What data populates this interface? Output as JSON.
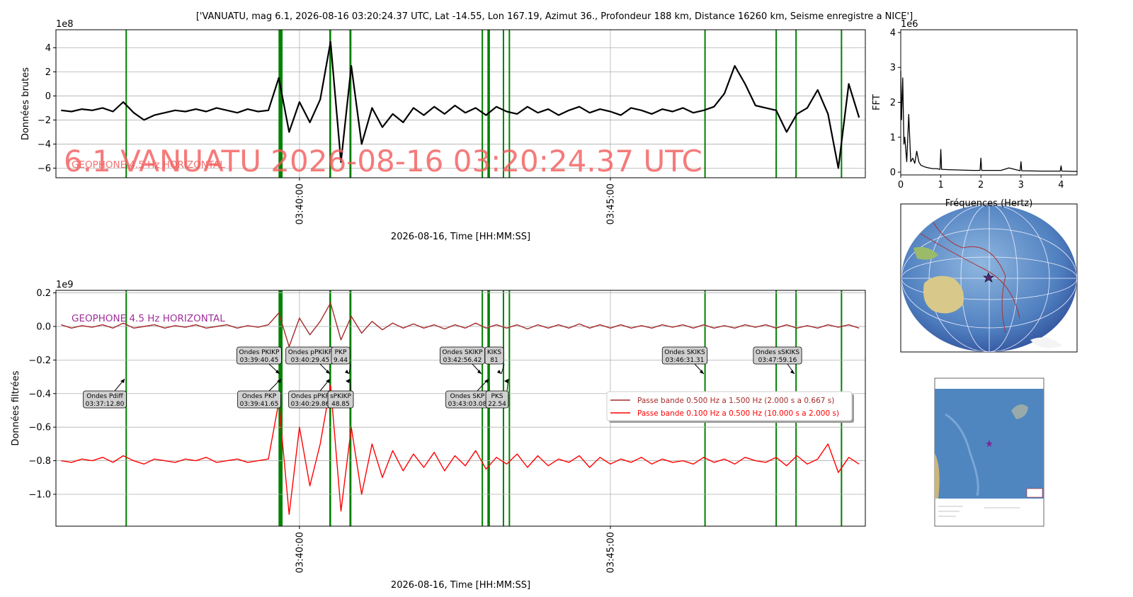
{
  "chart_data": [
    {
      "type": "line",
      "title": "['VANUATU, mag 6.1, 2026-08-16 03:20:24.37 UTC, Lat -14.55, Lon 167.19, Azimut 36., Profondeur 188 km, Distance 16260 km, Seisme enregistre a NICE']",
      "xlabel": "2026-08-16, Time [HH:MM:SS]",
      "ylabel": "Données brutes",
      "y_offset_label": "1e8",
      "watermark": "6.1 VANUATU 2026-08-16 03:20:24.37 UTC",
      "subtitle": "GEOPHONE 4.5 Hz HORIZONTAL",
      "grid": true,
      "xlim": [
        12965,
        13746
      ],
      "ylim": [
        -6.8,
        5.5
      ],
      "xticks": [
        {
          "value": 13200,
          "label": "03:40:00"
        },
        {
          "value": 13500,
          "label": "03:45:00"
        }
      ],
      "yticks": [
        {
          "value": -6,
          "label": "−6"
        },
        {
          "value": -4,
          "label": "−4"
        },
        {
          "value": -2,
          "label": "−2"
        },
        0,
        2,
        4
      ],
      "phase_lines": [
        13032.8,
        13180.45,
        13181.65,
        13183,
        13229.45,
        13229.86,
        13248.85,
        13249.44,
        13376.42,
        13382,
        13383.08,
        13396.81,
        13402.54,
        13591.31,
        13660,
        13679.16,
        13723
      ],
      "phase_color": "#008000",
      "x": [
        12970,
        12980,
        12990,
        13000,
        13010,
        13020,
        13030,
        13040,
        13050,
        13060,
        13070,
        13080,
        13090,
        13100,
        13110,
        13120,
        13130,
        13140,
        13150,
        13160,
        13170,
        13180,
        13190,
        13200,
        13210,
        13220,
        13230,
        13240,
        13250,
        13260,
        13270,
        13280,
        13290,
        13300,
        13310,
        13320,
        13330,
        13340,
        13350,
        13360,
        13370,
        13380,
        13390,
        13400,
        13410,
        13420,
        13430,
        13440,
        13450,
        13460,
        13470,
        13480,
        13490,
        13500,
        13510,
        13520,
        13530,
        13540,
        13550,
        13560,
        13570,
        13580,
        13590,
        13600,
        13610,
        13620,
        13630,
        13640,
        13650,
        13660,
        13670,
        13680,
        13690,
        13700,
        13710,
        13720,
        13730,
        13740
      ],
      "series": [
        {
          "color": "#000000",
          "values": [
            -1.2,
            -1.3,
            -1.1,
            -1.2,
            -1.0,
            -1.3,
            -0.5,
            -1.4,
            -2.0,
            -1.6,
            -1.4,
            -1.2,
            -1.3,
            -1.1,
            -1.3,
            -1.0,
            -1.2,
            -1.4,
            -1.1,
            -1.3,
            -1.2,
            1.5,
            -3.0,
            -0.5,
            -2.2,
            -0.3,
            4.5,
            -5.5,
            2.5,
            -4.0,
            -1.0,
            -2.6,
            -1.5,
            -2.2,
            -1.0,
            -1.6,
            -0.9,
            -1.5,
            -0.8,
            -1.4,
            -1.0,
            -1.6,
            -0.9,
            -1.3,
            -1.5,
            -0.9,
            -1.4,
            -1.1,
            -1.6,
            -1.2,
            -0.9,
            -1.4,
            -1.1,
            -1.3,
            -1.6,
            -1.0,
            -1.2,
            -1.5,
            -1.1,
            -1.3,
            -1.0,
            -1.4,
            -1.2,
            -0.9,
            0.2,
            2.5,
            1.0,
            -0.8,
            -1.0,
            -1.2,
            -3.0,
            -1.5,
            -1.0,
            0.5,
            -1.5,
            -6.0,
            1.0,
            -1.8
          ]
        }
      ]
    },
    {
      "type": "line",
      "xlabel": "2026-08-16, Time [HH:MM:SS]",
      "ylabel": "Données filtrées",
      "y_offset_label": "1e9",
      "subtitle": "GEOPHONE 4.5 Hz HORIZONTAL",
      "grid": true,
      "legend": "center right",
      "xlim": [
        12965,
        13746
      ],
      "ylim": [
        -1.19,
        0.215
      ],
      "xticks": [
        {
          "value": 13200,
          "label": "03:40:00"
        },
        {
          "value": 13500,
          "label": "03:45:00"
        }
      ],
      "yticks": [
        {
          "value": -1.0,
          "label": "−1.0"
        },
        {
          "value": -0.8,
          "label": "−0.8"
        },
        {
          "value": -0.6,
          "label": "−0.6"
        },
        {
          "value": -0.4,
          "label": "−0.4"
        },
        {
          "value": -0.2,
          "label": "−0.2"
        },
        {
          "value": 0,
          "label": "0.0"
        },
        0.2
      ],
      "annotations": [
        [
          "Ondes Pdiff",
          "03:37:12.80"
        ],
        [
          "Ondes PKIKP",
          "03:39:40.45"
        ],
        [
          "Ondes PKP",
          "03:39:41.65"
        ],
        [
          "Ondes pPKIKP",
          "03:40:29.45"
        ],
        [
          "Ondes pPKP",
          "03:40:29.86"
        ],
        [
          "PKP",
          "9.44"
        ],
        [
          "sPKIKP",
          "48.85"
        ],
        [
          "Ondes SKIKP",
          "03:42:56.42"
        ],
        [
          "KIKS",
          "81"
        ],
        [
          "Ondes SKP",
          "03:43:03.08"
        ],
        [
          "PKS",
          "22.54"
        ],
        [
          "Ondes SKIKS",
          "03:46:31.31"
        ],
        [
          "Ondes sSKIKS",
          "03:47:59.16"
        ]
      ],
      "x": [
        12970,
        12980,
        12990,
        13000,
        13010,
        13020,
        13030,
        13040,
        13050,
        13060,
        13070,
        13080,
        13090,
        13100,
        13110,
        13120,
        13130,
        13140,
        13150,
        13160,
        13170,
        13180,
        13190,
        13200,
        13210,
        13220,
        13230,
        13240,
        13250,
        13260,
        13270,
        13280,
        13290,
        13300,
        13310,
        13320,
        13330,
        13340,
        13350,
        13360,
        13370,
        13380,
        13390,
        13400,
        13410,
        13420,
        13430,
        13440,
        13450,
        13460,
        13470,
        13480,
        13490,
        13500,
        13510,
        13520,
        13530,
        13540,
        13550,
        13560,
        13570,
        13580,
        13590,
        13600,
        13610,
        13620,
        13630,
        13640,
        13650,
        13660,
        13670,
        13680,
        13690,
        13700,
        13710,
        13720,
        13730,
        13740
      ],
      "series": [
        {
          "name": "Passe bande 0.500 Hz a 1.500 Hz (2.000 s a 0.667 s)",
          "color": "#a52a2a",
          "values": [
            0.01,
            -0.01,
            0.005,
            -0.005,
            0.01,
            -0.01,
            0.02,
            -0.01,
            0.0,
            0.01,
            -0.01,
            0.005,
            -0.005,
            0.01,
            -0.01,
            0.0,
            0.01,
            -0.01,
            0.005,
            -0.005,
            0.01,
            0.08,
            -0.12,
            0.05,
            -0.05,
            0.03,
            0.14,
            -0.08,
            0.06,
            -0.04,
            0.03,
            -0.02,
            0.02,
            -0.01,
            0.015,
            -0.01,
            0.01,
            -0.015,
            0.01,
            -0.01,
            0.02,
            -0.01,
            0.01,
            -0.01,
            0.01,
            -0.015,
            0.01,
            -0.01,
            0.01,
            -0.01,
            0.015,
            -0.01,
            0.01,
            -0.01,
            0.01,
            -0.01,
            0.005,
            -0.01,
            0.01,
            -0.005,
            0.01,
            -0.01,
            0.01,
            -0.01,
            0.005,
            -0.01,
            0.01,
            -0.005,
            0.01,
            -0.01,
            0.01,
            -0.01,
            0.005,
            -0.01,
            0.01,
            -0.005,
            0.01,
            -0.01
          ]
        },
        {
          "name": "Passe bande 0.100 Hz a 0.500 Hz (10.000 s a 2.000 s)",
          "color": "#ff0000",
          "values": [
            -0.8,
            -0.81,
            -0.79,
            -0.8,
            -0.78,
            -0.81,
            -0.77,
            -0.8,
            -0.82,
            -0.79,
            -0.8,
            -0.81,
            -0.79,
            -0.8,
            -0.78,
            -0.81,
            -0.8,
            -0.79,
            -0.81,
            -0.8,
            -0.79,
            -0.45,
            -1.12,
            -0.6,
            -0.95,
            -0.7,
            -0.35,
            -1.1,
            -0.6,
            -1.0,
            -0.7,
            -0.9,
            -0.74,
            -0.86,
            -0.76,
            -0.84,
            -0.75,
            -0.86,
            -0.77,
            -0.83,
            -0.74,
            -0.85,
            -0.78,
            -0.82,
            -0.76,
            -0.84,
            -0.77,
            -0.83,
            -0.79,
            -0.81,
            -0.77,
            -0.84,
            -0.78,
            -0.82,
            -0.79,
            -0.81,
            -0.78,
            -0.82,
            -0.79,
            -0.81,
            -0.8,
            -0.82,
            -0.78,
            -0.81,
            -0.79,
            -0.82,
            -0.78,
            -0.8,
            -0.81,
            -0.78,
            -0.83,
            -0.77,
            -0.82,
            -0.79,
            -0.7,
            -0.87,
            -0.78,
            -0.82
          ]
        }
      ]
    },
    {
      "type": "line",
      "xlabel": "Fréquences (Hertz)",
      "ylabel": "FFT",
      "y_offset_label": "1e6",
      "grid": false,
      "xlim": [
        0,
        4.4
      ],
      "ylim": [
        -0.08,
        4.08
      ],
      "xticks": [
        0,
        1,
        2,
        3,
        4
      ],
      "yticks": [
        0,
        1,
        2,
        3,
        4
      ],
      "x": [
        0,
        0.02,
        0.05,
        0.08,
        0.1,
        0.15,
        0.2,
        0.25,
        0.3,
        0.35,
        0.4,
        0.45,
        0.5,
        0.6,
        0.7,
        0.8,
        0.9,
        0.98,
        1.0,
        1.02,
        1.2,
        1.5,
        1.8,
        1.98,
        2.0,
        2.02,
        2.5,
        2.7,
        2.98,
        3.0,
        3.02,
        3.5,
        3.98,
        4.0,
        4.02,
        4.4
      ],
      "series": [
        {
          "color": "#000000",
          "values": [
            2.9,
            1.5,
            2.7,
            0.8,
            1.0,
            0.3,
            1.65,
            0.3,
            0.4,
            0.25,
            0.6,
            0.3,
            0.2,
            0.15,
            0.12,
            0.1,
            0.1,
            0.08,
            0.65,
            0.08,
            0.07,
            0.06,
            0.05,
            0.05,
            0.4,
            0.05,
            0.05,
            0.12,
            0.04,
            0.3,
            0.04,
            0.03,
            0.03,
            0.18,
            0.03,
            0.02
          ]
        }
      ]
    }
  ]
}
